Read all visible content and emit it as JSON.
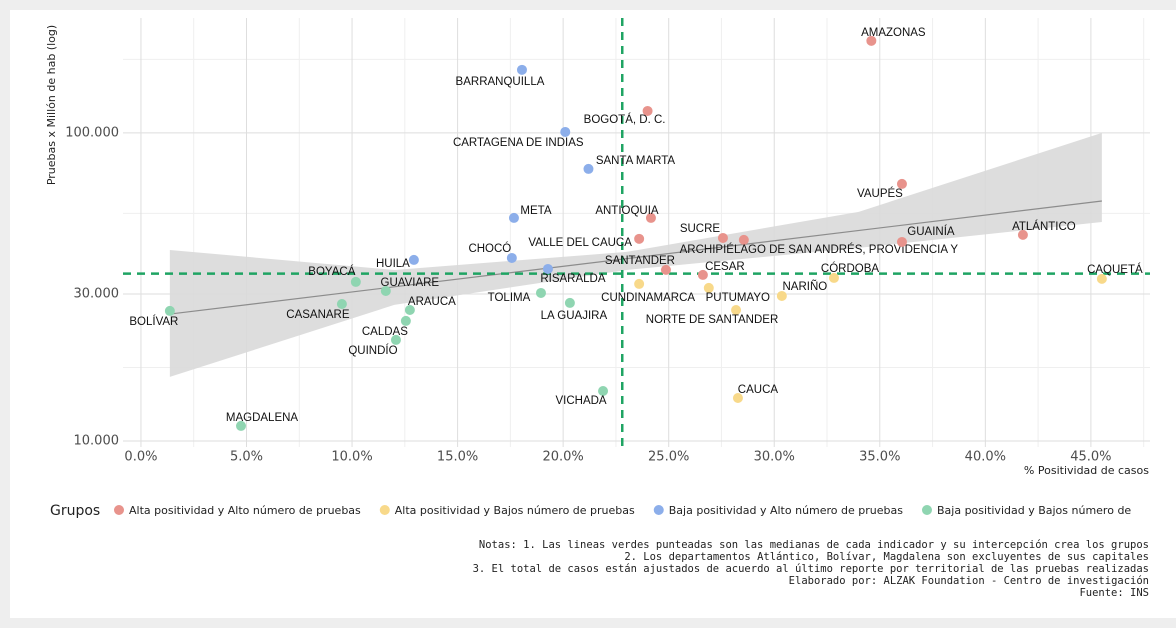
{
  "chart_data": {
    "type": "scatter",
    "y_title": "Pruebas x Millón de hab (log)",
    "x_title": "% Positividad de casos",
    "legend_title": "Grupos",
    "log_y": true,
    "grid": true,
    "legend_position": "bottom",
    "xlim": [
      -0.85,
      47.8
    ],
    "xticks": [
      {
        "value": 0,
        "label": "0.0%"
      },
      {
        "value": 5,
        "label": "5.0%"
      },
      {
        "value": 10,
        "label": "10.0%"
      },
      {
        "value": 15,
        "label": "15.0%"
      },
      {
        "value": 20,
        "label": "20.0%"
      },
      {
        "value": 25,
        "label": "25.0%"
      },
      {
        "value": 30,
        "label": "30.0%"
      },
      {
        "value": 35,
        "label": "35.0%"
      },
      {
        "value": 40,
        "label": "40.0%"
      },
      {
        "value": 45,
        "label": "45.0%"
      }
    ],
    "x_minor_grid": [
      2.5,
      7.5,
      12.5,
      17.5,
      22.5,
      27.5,
      32.5,
      37.5,
      42.5,
      47.5
    ],
    "ylim": [
      9560,
      236000
    ],
    "yticks": [
      {
        "value": 10000,
        "label": "10.000"
      },
      {
        "value": 30000,
        "label": "30.000"
      },
      {
        "value": 100000,
        "label": "100.000"
      }
    ],
    "y_minor_grid": [
      17320,
      54772,
      173205
    ],
    "median_x": 22.8,
    "median_y": 34940,
    "median_color": "#1fa463",
    "trend": {
      "x": [
        1.37,
        45.52
      ],
      "values": [
        25820,
        60120
      ],
      "color": "#8c8c8c"
    },
    "band": {
      "x": [
        1.37,
        12,
        23,
        34,
        45.52
      ],
      "lower": [
        16140,
        27650,
        35900,
        42330,
        51400
      ],
      "upper": [
        41690,
        35900,
        41080,
        55410,
        100000
      ],
      "color": "#d9d9d9"
    },
    "series": [
      {
        "name": "Alta positividad y Alto número de pruebas",
        "color": "#e8938c",
        "labels": [
          "AMAZONAS",
          "BOGOTÁ, D. C.",
          "VAUPÉS",
          "ANTIOQUIA",
          "SUCRE",
          "VALLE DEL CAUCA",
          "ARCHIPIÉLAGO DE SAN ANDRÉS, PROVIDENCIA Y",
          "GUAINÍA",
          "ATLÁNTICO",
          "SANTANDER",
          "CESAR"
        ],
        "x": [
          34.6,
          24.0,
          36.05,
          24.16,
          27.57,
          23.6,
          28.56,
          36.05,
          41.78,
          24.87,
          26.62
        ],
        "values": [
          199000,
          117800,
          68300,
          52970,
          45600,
          45300,
          44950,
          44260,
          46660,
          35930,
          34590
        ]
      },
      {
        "name": "Alta positividad y Bajos número de pruebas",
        "color": "#f8d98a",
        "labels": [
          "CÓRDOBA",
          "CAQUETÁ",
          "CUNDINAMARCA",
          "NARIÑO",
          "PUTUMAYO",
          "NORTE DE SANTANDER",
          "CAUCA"
        ],
        "x": [
          32.83,
          45.52,
          23.6,
          30.36,
          26.9,
          28.19,
          28.28
        ],
        "values": [
          33830,
          33580,
          32340,
          29560,
          31390,
          26620,
          13790
        ]
      },
      {
        "name": "Baja positividad y Alto número de pruebas",
        "color": "#8caeea",
        "labels": [
          "BARRANQUILLA",
          "CARTAGENA DE INDIAS",
          "SANTA MARTA",
          "META",
          "HUILA",
          "CHOCÓ",
          "RISARALDA"
        ],
        "x": [
          18.05,
          20.1,
          21.2,
          17.67,
          12.93,
          17.57,
          19.28
        ],
        "values": [
          160200,
          100700,
          76400,
          52970,
          38700,
          39270,
          36170
        ]
      },
      {
        "name": "Baja positividad y Bajos número de",
        "color": "#8fd5b1",
        "labels": [
          "BOYACÁ",
          "GUAVIARE",
          "TOLIMA",
          "LA GUAJIRA",
          "CASANARE",
          "ARAUCA",
          "BOLÍVAR",
          "CALDAS",
          "QUINDÍO",
          "VICHADA",
          "MAGDALENA"
        ],
        "x": [
          10.18,
          11.6,
          18.95,
          20.32,
          9.52,
          12.74,
          1.37,
          12.55,
          12.08,
          21.89,
          4.74
        ],
        "values": [
          32830,
          30690,
          30230,
          28060,
          27840,
          26620,
          26430,
          24530,
          21280,
          14530,
          11190
        ]
      }
    ],
    "notes": [
      "Notas: 1. Las lineas verdes punteadas son las medianas de cada indicador y su intercepción crea los grupos",
      "2. Los departamentos Atlántico, Bolívar, Magdalena son excluyentes de sus capitales",
      "3. El total de casos están ajustados de acuerdo al último reporte por territorial de las pruebas realizadas",
      "Elaborado por: ALZAK Foundation - Centro de investigación",
      "Fuente: INS"
    ]
  }
}
